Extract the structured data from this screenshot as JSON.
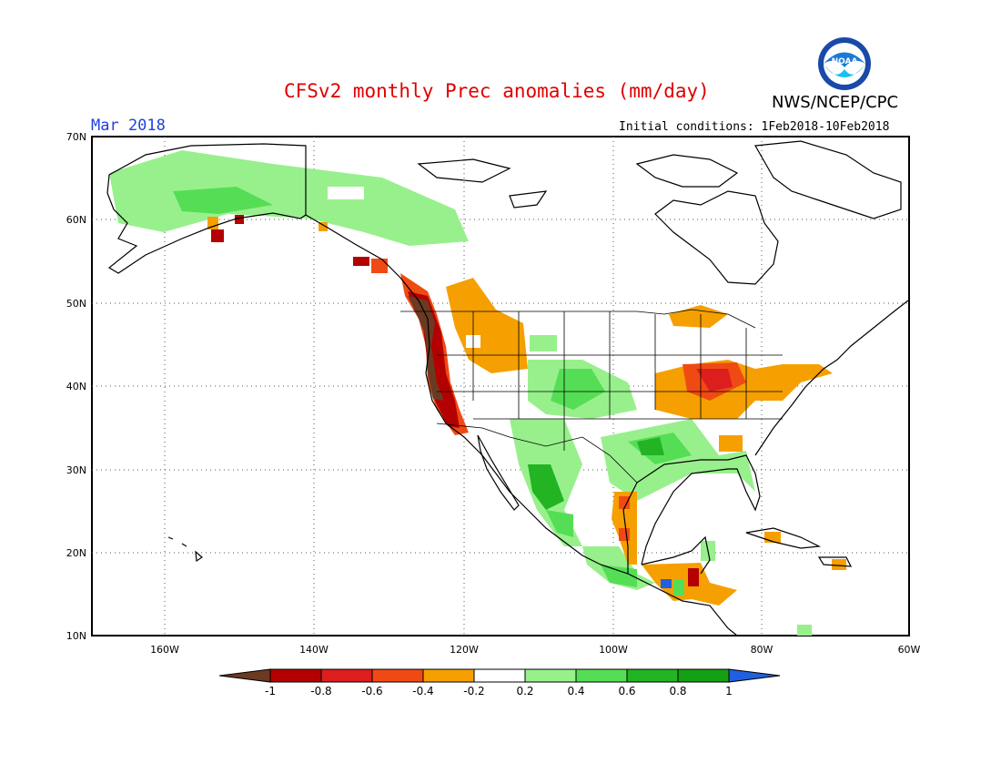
{
  "title": "CFSv2 monthly Prec anomalies (mm/day)",
  "agency": "NWS/NCEP/CPC",
  "month": "Mar 2018",
  "initial_conditions": "Initial conditions: 1Feb2018-10Feb2018",
  "logo_text": "NOAA",
  "lat_labels": [
    "70N",
    "60N",
    "50N",
    "40N",
    "30N",
    "20N",
    "10N"
  ],
  "lon_labels": [
    "160W",
    "140W",
    "120W",
    "100W",
    "80W",
    "60W"
  ],
  "colorbar": {
    "labels": [
      "-1",
      "-0.8",
      "-0.6",
      "-0.4",
      "-0.2",
      "0.2",
      "0.4",
      "0.6",
      "0.8",
      "1"
    ],
    "colors": [
      "#6b3a22",
      "#b40000",
      "#dc1e1e",
      "#f04a14",
      "#f5a000",
      "#ffffff",
      "#98f08c",
      "#55de55",
      "#22b422",
      "#14a014",
      "#2060e0"
    ]
  },
  "colors": {
    "title": "#e00000",
    "month": "#2040e0"
  }
}
